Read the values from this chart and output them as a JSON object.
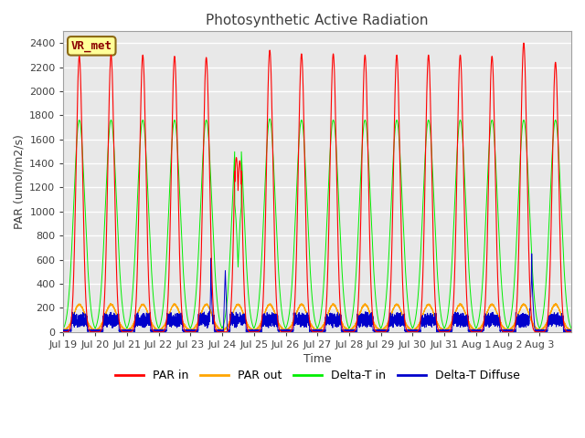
{
  "title": "Photosynthetic Active Radiation",
  "xlabel": "Time",
  "ylabel": "PAR (umol/m2/s)",
  "ylim": [
    0,
    2500
  ],
  "colors": {
    "PAR in": "#FF0000",
    "PAR out": "#FFA500",
    "Delta-T in": "#00EE00",
    "Delta-T Diffuse": "#0000CC"
  },
  "background_color": "#E8E8E8",
  "grid_color": "#FFFFFF",
  "annotation_text": "VR_met",
  "annotation_bg": "#FFFF99",
  "annotation_border": "#8B6914",
  "x_tick_labels": [
    "Jul 19",
    "Jul 20",
    "Jul 21",
    "Jul 22",
    "Jul 23",
    "Jul 24",
    "Jul 25",
    "Jul 26",
    "Jul 27",
    "Jul 28",
    "Jul 29",
    "Jul 30",
    "Jul 31",
    "Aug 1",
    "Aug 2",
    "Aug 3"
  ],
  "num_days": 16
}
